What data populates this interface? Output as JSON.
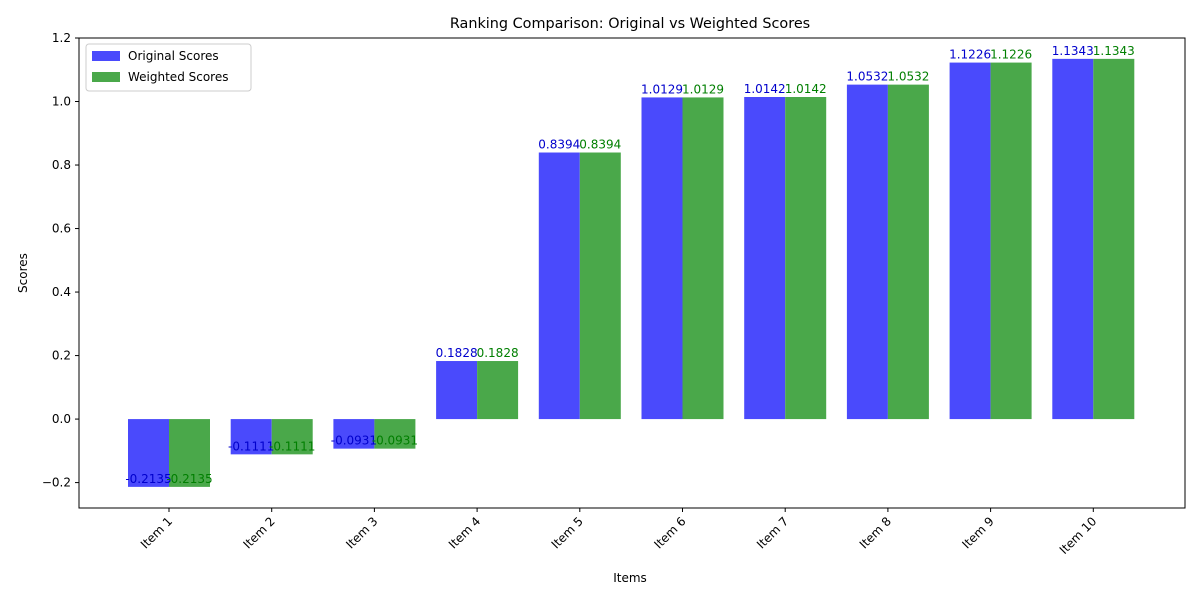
{
  "chart_data": {
    "type": "bar",
    "title": "Ranking Comparison: Original vs Weighted Scores",
    "xlabel": "Items",
    "ylabel": "Scores",
    "categories": [
      "Item 1",
      "Item 2",
      "Item 3",
      "Item 4",
      "Item 5",
      "Item 6",
      "Item 7",
      "Item 8",
      "Item 9",
      "Item 10"
    ],
    "series": [
      {
        "name": "Original Scores",
        "color": "#4a4afc",
        "label_color": "#0000cc",
        "values": [
          -0.2135,
          -0.1111,
          -0.0931,
          0.1828,
          0.8394,
          1.0129,
          1.0142,
          1.0532,
          1.1226,
          1.1343
        ],
        "labels": [
          "-0.2135",
          "-0.1111",
          "-0.0931",
          "0.1828",
          "0.8394",
          "1.0129",
          "1.0142",
          "1.0532",
          "1.1226",
          "1.1343"
        ]
      },
      {
        "name": "Weighted Scores",
        "color": "#4aa84a",
        "label_color": "#007f00",
        "values": [
          -0.2135,
          -0.1111,
          -0.0931,
          0.1828,
          0.8394,
          1.0129,
          1.0142,
          1.0532,
          1.1226,
          1.1343
        ],
        "labels": [
          "-0.2135",
          "-0.1111",
          "-0.0931",
          "0.1828",
          "0.8394",
          "1.0129",
          "1.0142",
          "1.0532",
          "1.1226",
          "1.1343"
        ]
      }
    ],
    "ylim": [
      -0.28,
      1.2
    ],
    "yticks": [
      -0.2,
      0.0,
      0.2,
      0.4,
      0.6,
      0.8,
      1.0,
      1.2
    ],
    "ytick_labels": [
      "−0.2",
      "0.0",
      "0.2",
      "0.4",
      "0.6",
      "0.8",
      "1.0",
      "1.2"
    ],
    "grid": false,
    "legend_position": "top-left",
    "xtick_rotation": 45
  }
}
